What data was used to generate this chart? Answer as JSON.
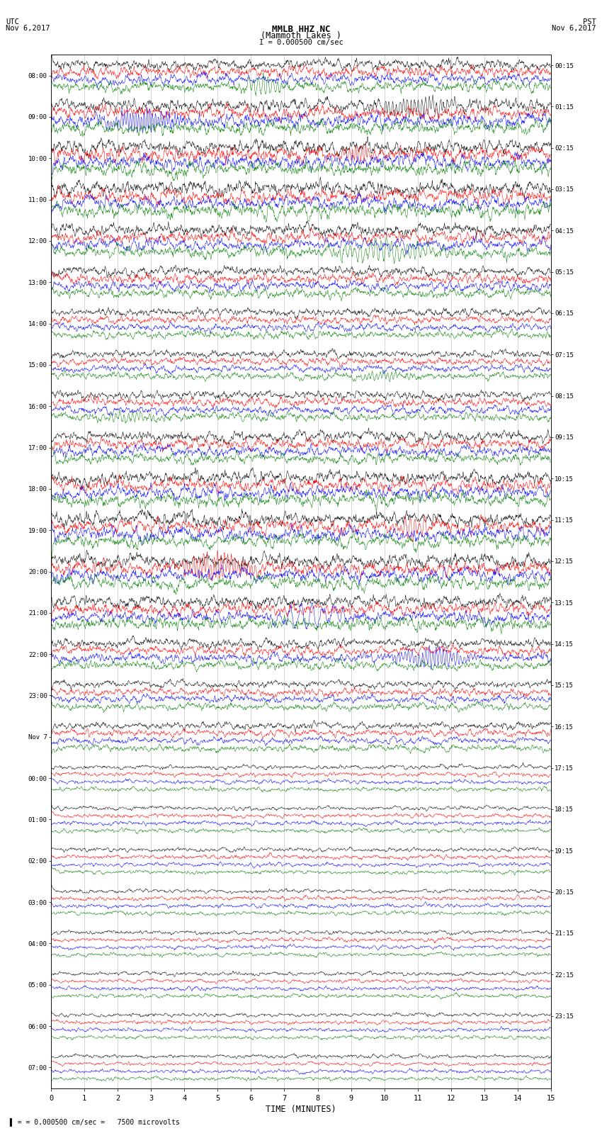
{
  "title_line1": "MMLB HHZ NC",
  "title_line2": "(Mammoth Lakes )",
  "scale_label": "I = 0.000500 cm/sec",
  "left_timezone": "UTC",
  "left_date": "Nov 6,2017",
  "right_timezone": "PST",
  "right_date": "Nov 6,2017",
  "xlabel": "TIME (MINUTES)",
  "bottom_note": "= 0.000500 cm/sec =   7500 microvolts",
  "left_times": [
    "08:00",
    "09:00",
    "10:00",
    "11:00",
    "12:00",
    "13:00",
    "14:00",
    "15:00",
    "16:00",
    "17:00",
    "18:00",
    "19:00",
    "20:00",
    "21:00",
    "22:00",
    "23:00",
    "Nov 7",
    "00:00",
    "01:00",
    "02:00",
    "03:00",
    "04:00",
    "05:00",
    "06:00",
    "07:00"
  ],
  "right_times": [
    "00:15",
    "01:15",
    "02:15",
    "03:15",
    "04:15",
    "05:15",
    "06:15",
    "07:15",
    "08:15",
    "09:15",
    "10:15",
    "11:15",
    "12:15",
    "13:15",
    "14:15",
    "15:15",
    "16:15",
    "17:15",
    "18:15",
    "19:15",
    "20:15",
    "21:15",
    "22:15",
    "23:15"
  ],
  "n_rows": 25,
  "traces_per_row": 4,
  "colors": [
    "black",
    "red",
    "blue",
    "green"
  ],
  "minutes": 15,
  "bg_color": "white",
  "fig_width": 8.5,
  "fig_height": 16.13,
  "dpi": 100,
  "seed": 42
}
